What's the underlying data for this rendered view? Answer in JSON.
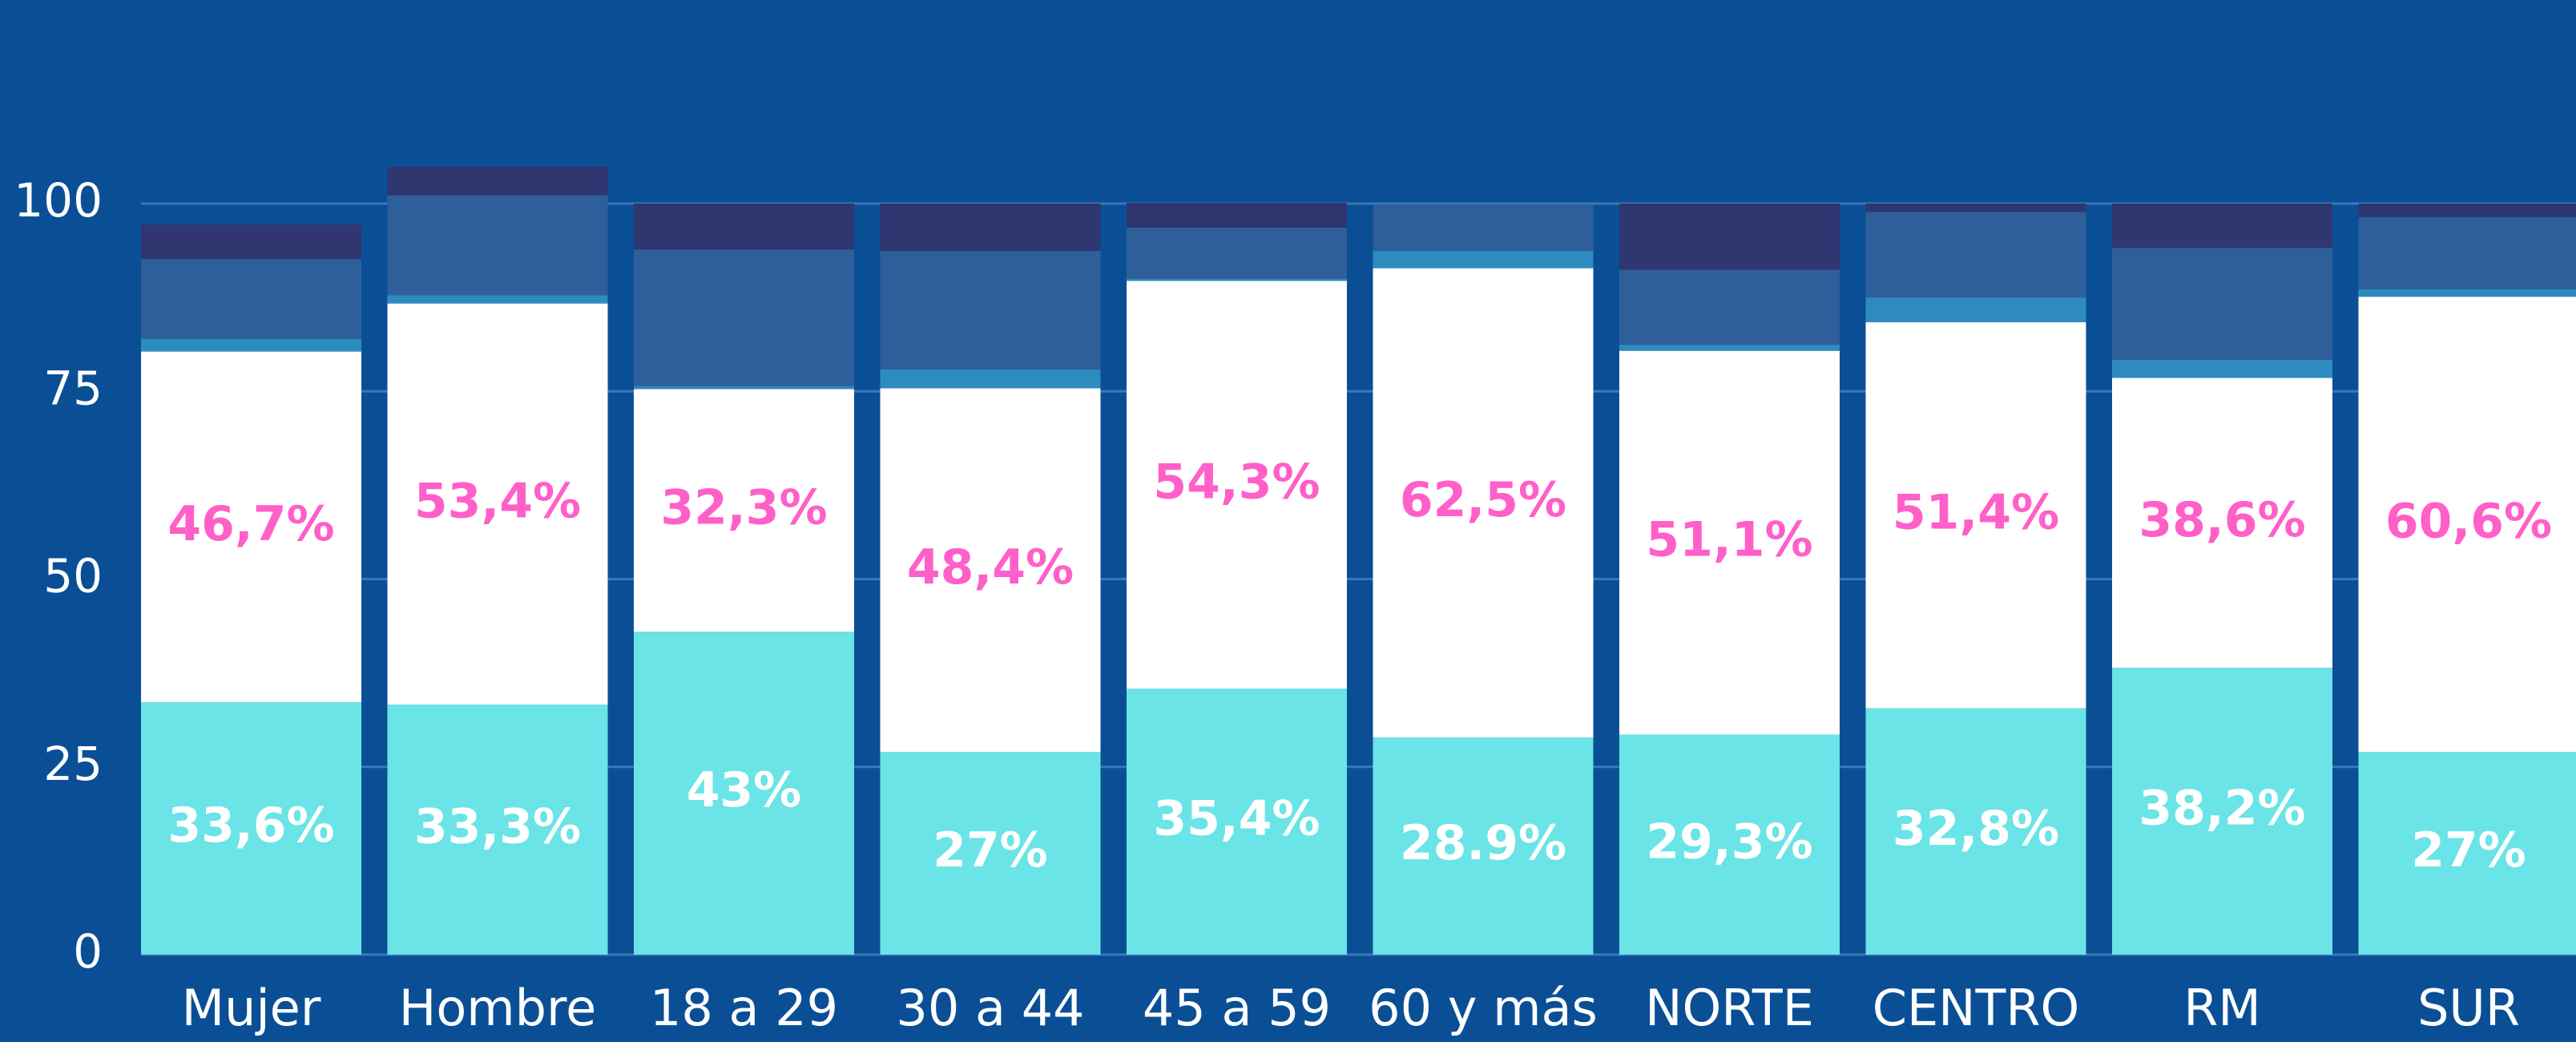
{
  "chart_data": {
    "type": "stacked_bar",
    "categories": [
      "Mujer",
      "Hombre",
      "18 a 29",
      "30 a 44",
      "45 a 59",
      "60 y más",
      "NORTE",
      "CENTRO",
      "RM",
      "SUR"
    ],
    "series": [
      {
        "color": "#6ae4e6",
        "label_color": "#ffffff",
        "values": [
          33.6,
          33.3,
          43,
          27,
          35.4,
          28.9,
          29.3,
          32.8,
          38.2,
          27
        ],
        "value_labels": [
          "33,6%",
          "33,3%",
          "43%",
          "27%",
          "35,4%",
          "28.9%",
          "29,3%",
          "32,8%",
          "38,2%",
          "27%"
        ]
      },
      {
        "color": "#ffffff",
        "label_color": "#ff5fc8",
        "values": [
          46.7,
          53.4,
          32.3,
          48.4,
          54.3,
          62.5,
          51.1,
          51.4,
          38.6,
          60.6
        ],
        "value_labels": [
          "46,7%",
          "53,4%",
          "32,3%",
          "48,4%",
          "54,3%",
          "62,5%",
          "51,1%",
          "51,4%",
          "38,6%",
          "60,6%"
        ]
      },
      {
        "color": "#2e8bc0",
        "values": [
          1.7,
          1.1,
          0.4,
          2.5,
          0.3,
          2.3,
          0.8,
          3.3,
          2.4,
          1.0
        ]
      },
      {
        "color": "#2e5f9a",
        "values": [
          10.6,
          13.3,
          18.2,
          15.8,
          6.8,
          6.1,
          10,
          11.4,
          14.9,
          9.6
        ]
      },
      {
        "color": "#2f3670",
        "values": [
          4.6,
          3.8,
          6.1,
          6.3,
          3.3,
          0,
          8.8,
          1.1,
          5.9,
          1.8
        ]
      }
    ],
    "ylim": [
      0,
      100
    ],
    "yticks": [
      0,
      25,
      50,
      75,
      100
    ],
    "grid": true,
    "background": "#0a4f96"
  }
}
